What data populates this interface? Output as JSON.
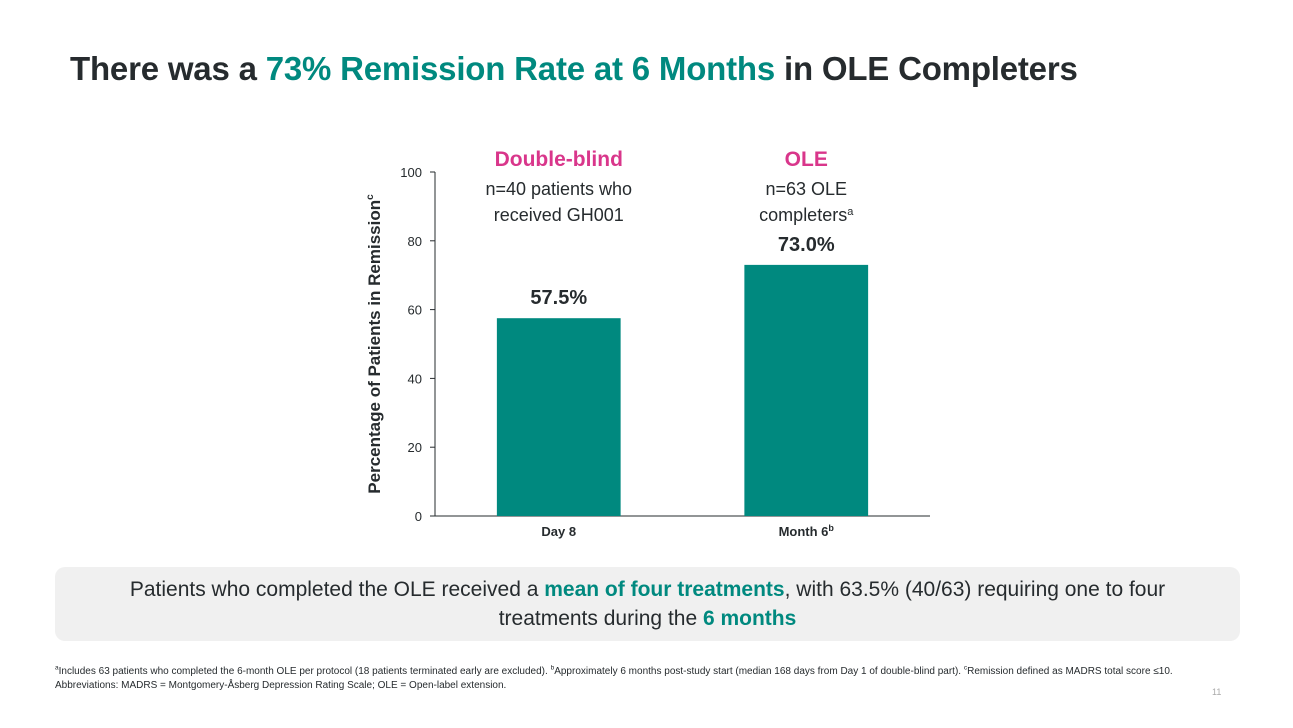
{
  "slide": {
    "title": [
      {
        "text": "There was a "
      },
      {
        "text": "73% Remission Rate at 6 Months",
        "highlight": true
      },
      {
        "text": " in OLE Completers"
      }
    ],
    "callout": [
      {
        "text": "Patients who completed the OLE received a "
      },
      {
        "text": "mean of four treatments",
        "highlight": true
      },
      {
        "text": ", with 63.5% (40/63) requiring one to four treatments during the "
      },
      {
        "text": "6 months",
        "highlight": true
      }
    ],
    "footnotes": [
      {
        "sup": "a",
        "text": "Includes 63 patients who completed the 6-month OLE per protocol (18 patients terminated early are excluded). "
      },
      {
        "sup": "b",
        "text": "Approximately 6 months post-study start (median 168 days from Day 1 of double-blind part). "
      },
      {
        "sup": "c",
        "text": "Remission defined as MADRS total score ≤10."
      }
    ],
    "abbreviations": "Abbreviations: MADRS = Montgomery-Åsberg Depression Rating Scale; OLE = Open-label extension.",
    "page_number": "11"
  },
  "chart_data": {
    "type": "bar",
    "y_label": "Percentage of Patients in Remission",
    "y_label_sup": "c",
    "categories": [
      "Day 8",
      "Month 6"
    ],
    "category_sups": [
      null,
      "b"
    ],
    "values": [
      57.5,
      73.0
    ],
    "value_labels": [
      "57.5%",
      "73.0%"
    ],
    "color": "#00897f",
    "header_color": "#d9368b",
    "group_headers": [
      {
        "title": "Double-blind",
        "lines": [
          {
            "text": "n=40 patients who"
          },
          {
            "text": "received GH001"
          }
        ]
      },
      {
        "title": "OLE",
        "lines": [
          {
            "text": "n=63 OLE"
          },
          {
            "text": "completers",
            "sup": "a"
          }
        ]
      }
    ],
    "ylim": [
      0,
      100
    ],
    "yticks": [
      0,
      20,
      40,
      60,
      80,
      100
    ]
  }
}
